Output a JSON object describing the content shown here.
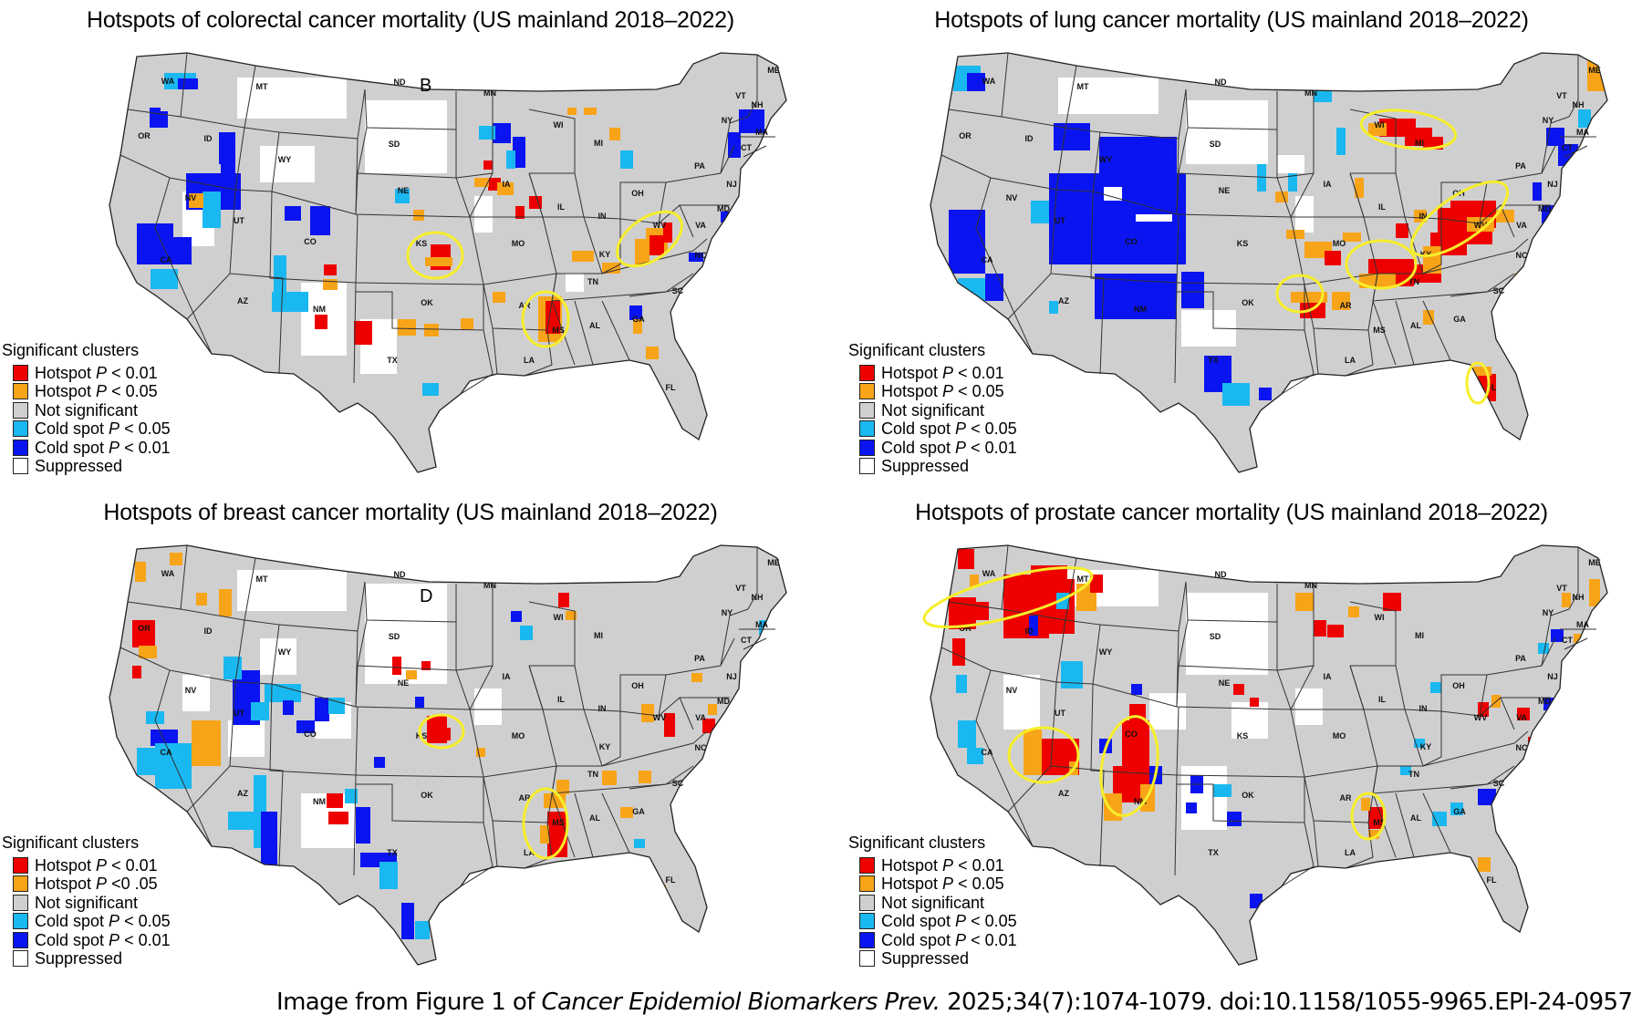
{
  "colors": {
    "hot01": "#ee0000",
    "hot05": "#f8a418",
    "ns": "#cfcfcf",
    "cold05": "#1ab8f0",
    "cold01": "#0a14f0",
    "suppressed": "#ffffff",
    "highlight": "#f7ee2a"
  },
  "caption": {
    "prefix": "Image from Figure 1 of ",
    "journal": "Cancer Epidemiol Biomarkers Prev.",
    "suffix": " 2025;34(7):1074-1079. doi:10.1158/1055-9965.EPI-24-0957"
  },
  "state_labels": [
    "WA",
    "OR",
    "CA",
    "ID",
    "NV",
    "MT",
    "WY",
    "UT",
    "AZ",
    "CO",
    "NM",
    "ND",
    "SD",
    "NE",
    "KS",
    "OK",
    "TX",
    "MN",
    "IA",
    "MO",
    "AR",
    "LA",
    "WI",
    "IL",
    "MI",
    "IN",
    "OH",
    "KY",
    "TN",
    "MS",
    "AL",
    "GA",
    "FL",
    "SC",
    "NC",
    "VA",
    "WV",
    "PA",
    "NY",
    "VT",
    "NH",
    "ME",
    "MA",
    "CT",
    "NJ",
    "MD"
  ],
  "panels": [
    {
      "id": "colorectal",
      "title": "Hotspots of colorectal cancer mortality (US mainland 2018–2022)",
      "panel_letter": "B",
      "legend": {
        "title": "Significant clusters",
        "items": [
          {
            "key": "hot01",
            "text": "Hotspot ",
            "p": "P",
            "rest": " < 0.01"
          },
          {
            "key": "hot05",
            "text": "Hotspot ",
            "p": "P",
            "rest": " < 0.05"
          },
          {
            "key": "ns",
            "text": "Not significant",
            "p": "",
            "rest": ""
          },
          {
            "key": "cold05",
            "text": "Cold spot ",
            "p": "P",
            "rest": " < 0.05"
          },
          {
            "key": "cold01",
            "text": "Cold spot ",
            "p": "P",
            "rest": " < 0.01"
          },
          {
            "key": "suppressed",
            "text": "Suppressed",
            "p": "",
            "rest": ""
          }
        ]
      },
      "highlighted_regions": [
        "Kansas",
        "Arkansas–Mississippi delta",
        "Kentucky–West Virginia"
      ],
      "dominant_hotspot_states": [
        "KS",
        "AR",
        "MS",
        "WV",
        "KY"
      ],
      "dominant_coldspot_states": [
        "CA",
        "UT",
        "CO",
        "WA",
        "ID",
        "MN",
        "WI",
        "MA"
      ]
    },
    {
      "id": "lung",
      "title": "Hotspots of lung cancer mortality (US mainland 2018–2022)",
      "panel_letter": "",
      "legend": {
        "title": "Significant clusters",
        "items": [
          {
            "key": "hot01",
            "text": "Hotspot ",
            "p": "P",
            "rest": " < 0.01"
          },
          {
            "key": "hot05",
            "text": "Hotspot ",
            "p": "P",
            "rest": " < 0.05"
          },
          {
            "key": "ns",
            "text": "Not significant",
            "p": "",
            "rest": ""
          },
          {
            "key": "cold05",
            "text": "Cold spot ",
            "p": "P",
            "rest": " < 0.05"
          },
          {
            "key": "cold01",
            "text": "Cold spot ",
            "p": "P",
            "rest": " < 0.01"
          },
          {
            "key": "suppressed",
            "text": "Suppressed",
            "p": "",
            "rest": ""
          }
        ]
      },
      "highlighted_regions": [
        "Northern Michigan–Wisconsin",
        "Oklahoma",
        "Missouri–Tennessee",
        "Kentucky–West Virginia–Ohio",
        "North Florida"
      ],
      "dominant_hotspot_states": [
        "KY",
        "WV",
        "OH",
        "TN",
        "MO",
        "OK",
        "AR",
        "MI",
        "FL"
      ],
      "dominant_coldspot_states": [
        "UT",
        "CO",
        "WY",
        "NV",
        "CA",
        "AZ",
        "NM",
        "ID",
        "TX"
      ]
    },
    {
      "id": "breast",
      "title": "Hotspots of breast cancer mortality (US mainland 2018–2022)",
      "panel_letter": "D",
      "legend": {
        "title": "Significant clusters",
        "items": [
          {
            "key": "hot01",
            "text": "Hotspot ",
            "p": "P",
            "rest": " < 0.01"
          },
          {
            "key": "hot05",
            "text": "Hotspot ",
            "p": "P",
            "rest": " <0 .05"
          },
          {
            "key": "ns",
            "text": "Not significant",
            "p": "",
            "rest": ""
          },
          {
            "key": "cold05",
            "text": "Cold spot ",
            "p": "P",
            "rest": " < 0.05"
          },
          {
            "key": "cold01",
            "text": "Cold spot ",
            "p": "P",
            "rest": " < 0.01"
          },
          {
            "key": "suppressed",
            "text": "Suppressed",
            "p": "",
            "rest": ""
          }
        ]
      },
      "highlighted_regions": [
        "Kansas",
        "Mississippi delta"
      ],
      "dominant_hotspot_states": [
        "KS",
        "MS",
        "LA",
        "AR",
        "OR",
        "NM"
      ],
      "dominant_coldspot_states": [
        "CA",
        "UT",
        "AZ",
        "CO",
        "TX"
      ]
    },
    {
      "id": "prostate",
      "title": "Hotspots of prostate cancer mortality (US mainland 2018–2022)",
      "panel_letter": "",
      "legend": {
        "title": "Significant clusters",
        "items": [
          {
            "key": "hot01",
            "text": "Hotspot ",
            "p": "P",
            "rest": " < 0.01"
          },
          {
            "key": "hot05",
            "text": "Hotspot ",
            "p": "P",
            "rest": " < 0.05"
          },
          {
            "key": "ns",
            "text": "Not significant",
            "p": "",
            "rest": ""
          },
          {
            "key": "cold05",
            "text": "Cold spot ",
            "p": "P",
            "rest": " < 0.05"
          },
          {
            "key": "cold01",
            "text": "Cold spot ",
            "p": "P",
            "rest": " < 0.01"
          },
          {
            "key": "suppressed",
            "text": "Suppressed",
            "p": "",
            "rest": ""
          }
        ]
      },
      "highlighted_regions": [
        "Oregon–Idaho–Montana",
        "Arizona",
        "New Mexico",
        "Mississippi"
      ],
      "dominant_hotspot_states": [
        "OR",
        "ID",
        "MT",
        "AZ",
        "NM",
        "MS",
        "CO"
      ],
      "dominant_coldspot_states": [
        "CA",
        "NM",
        "TX",
        "GA",
        "SC"
      ]
    }
  ]
}
